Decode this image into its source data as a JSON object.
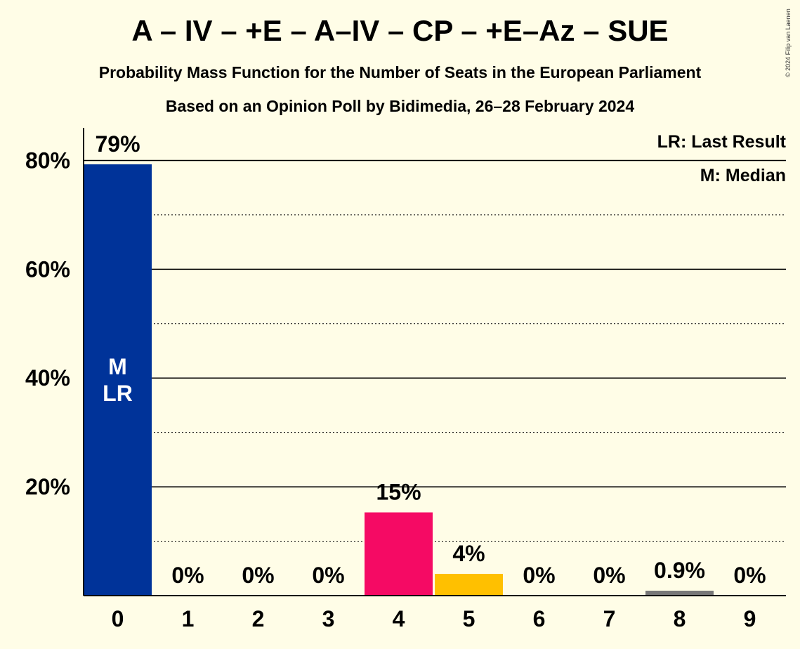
{
  "header": {
    "title": "A – IV – +E – A–IV – CP – +E–Az – SUE",
    "subtitle": "Probability Mass Function for the Number of Seats in the European Parliament",
    "source": "Based on an Opinion Poll by Bidimedia, 26–28 February 2024",
    "copyright": "© 2024 Filip van Laenen"
  },
  "chart_data": {
    "type": "bar",
    "categories": [
      "0",
      "1",
      "2",
      "3",
      "4",
      "5",
      "6",
      "7",
      "8",
      "9"
    ],
    "values": [
      79.3,
      0,
      0,
      0,
      15.3,
      4.0,
      0,
      0,
      0.9,
      0
    ],
    "data_labels": [
      "79%",
      "0%",
      "0%",
      "0%",
      "15%",
      "4%",
      "0%",
      "0%",
      "0.9%",
      "0%"
    ],
    "bar_colors": [
      "#003399",
      "#F5F5F5",
      "#F5F5F5",
      "#F5F5F5",
      "#F50A64",
      "#FFC000",
      "#F5F5F5",
      "#F5F5F5",
      "#777777",
      "#F5F5F5"
    ],
    "ylim": [
      0,
      86
    ],
    "yticks": [
      20,
      40,
      60,
      80
    ],
    "ytick_labels": [
      "20%",
      "40%",
      "60%",
      "80%"
    ],
    "minor_gridlines": [
      10,
      30,
      50,
      70
    ],
    "bar_annotation": {
      "bar_index": 0,
      "lines": [
        "M",
        "LR"
      ]
    },
    "legend": {
      "position": "top-right",
      "items": [
        "LR: Last Result",
        "M: Median"
      ]
    },
    "grid": true
  }
}
